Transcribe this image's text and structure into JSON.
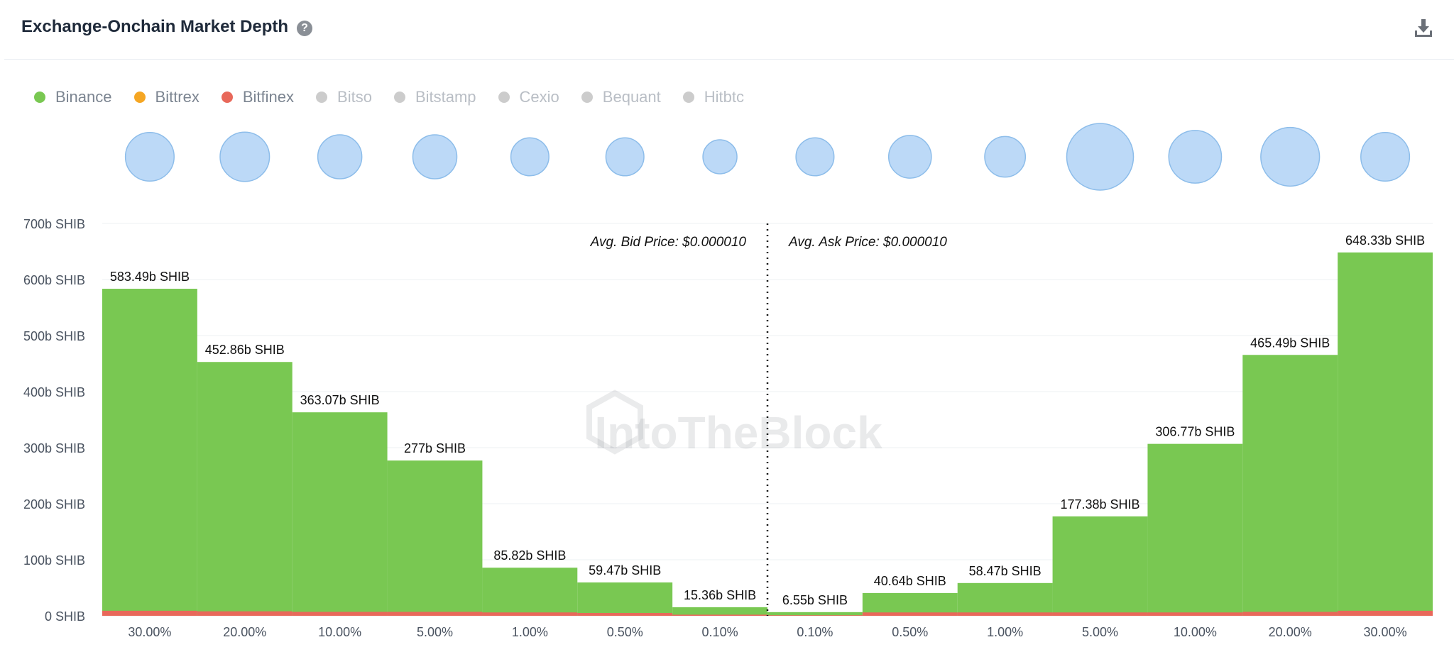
{
  "header": {
    "title": "Exchange-Onchain Market Depth",
    "help_icon": "question-circle-icon",
    "download_icon": "download-icon"
  },
  "legend": [
    {
      "name": "Binance",
      "color": "#79c852",
      "active": true
    },
    {
      "name": "Bittrex",
      "color": "#f5a623",
      "active": true
    },
    {
      "name": "Bitfinex",
      "color": "#e8685a",
      "active": true
    },
    {
      "name": "Bitso",
      "color": "#cccccc",
      "active": false
    },
    {
      "name": "Bitstamp",
      "color": "#cccccc",
      "active": false
    },
    {
      "name": "Cexio",
      "color": "#cccccc",
      "active": false
    },
    {
      "name": "Bequant",
      "color": "#cccccc",
      "active": false
    },
    {
      "name": "Hitbtc",
      "color": "#cccccc",
      "active": false
    }
  ],
  "watermark": "IntoTheBlock",
  "chart_data": {
    "type": "bar",
    "categories": [
      "30.00%",
      "20.00%",
      "10.00%",
      "5.00%",
      "1.00%",
      "0.50%",
      "0.10%",
      "0.10%",
      "0.50%",
      "1.00%",
      "5.00%",
      "10.00%",
      "20.00%",
      "30.00%"
    ],
    "series": [
      {
        "name": "Binance",
        "color": "#79c852",
        "values": [
          583.49,
          452.86,
          363.07,
          277,
          85.82,
          59.47,
          15.36,
          6.55,
          40.64,
          58.47,
          177.38,
          306.77,
          465.49,
          648.33
        ]
      },
      {
        "name": "Bitfinex",
        "color": "#e8685a",
        "values": [
          9,
          8,
          7,
          7,
          6,
          5,
          2,
          1,
          6,
          6,
          6,
          6,
          7,
          9
        ]
      }
    ],
    "data_labels": [
      "583.49b SHIB",
      "452.86b SHIB",
      "363.07b SHIB",
      "277b SHIB",
      "85.82b SHIB",
      "59.47b SHIB",
      "15.36b SHIB",
      "6.55b SHIB",
      "40.64b SHIB",
      "58.47b SHIB",
      "177.38b SHIB",
      "306.77b SHIB",
      "465.49b SHIB",
      "648.33b SHIB"
    ],
    "bubbles": [
      0.73,
      0.74,
      0.66,
      0.66,
      0.57,
      0.57,
      0.51,
      0.57,
      0.64,
      0.61,
      1.0,
      0.79,
      0.88,
      0.73
    ],
    "yticks": [
      {
        "value": 0,
        "label": "0 SHIB"
      },
      {
        "value": 100,
        "label": "100b SHIB"
      },
      {
        "value": 200,
        "label": "200b SHIB"
      },
      {
        "value": 300,
        "label": "300b SHIB"
      },
      {
        "value": 400,
        "label": "400b SHIB"
      },
      {
        "value": 500,
        "label": "500b SHIB"
      },
      {
        "value": 600,
        "label": "600b SHIB"
      },
      {
        "value": 700,
        "label": "700b SHIB"
      }
    ],
    "ylim": [
      0,
      700
    ],
    "annotations": {
      "bid": "Avg. Bid Price: $0.000010",
      "ask": "Avg. Ask Price: $0.000010"
    },
    "grid": true,
    "legend_position": "top-left"
  }
}
